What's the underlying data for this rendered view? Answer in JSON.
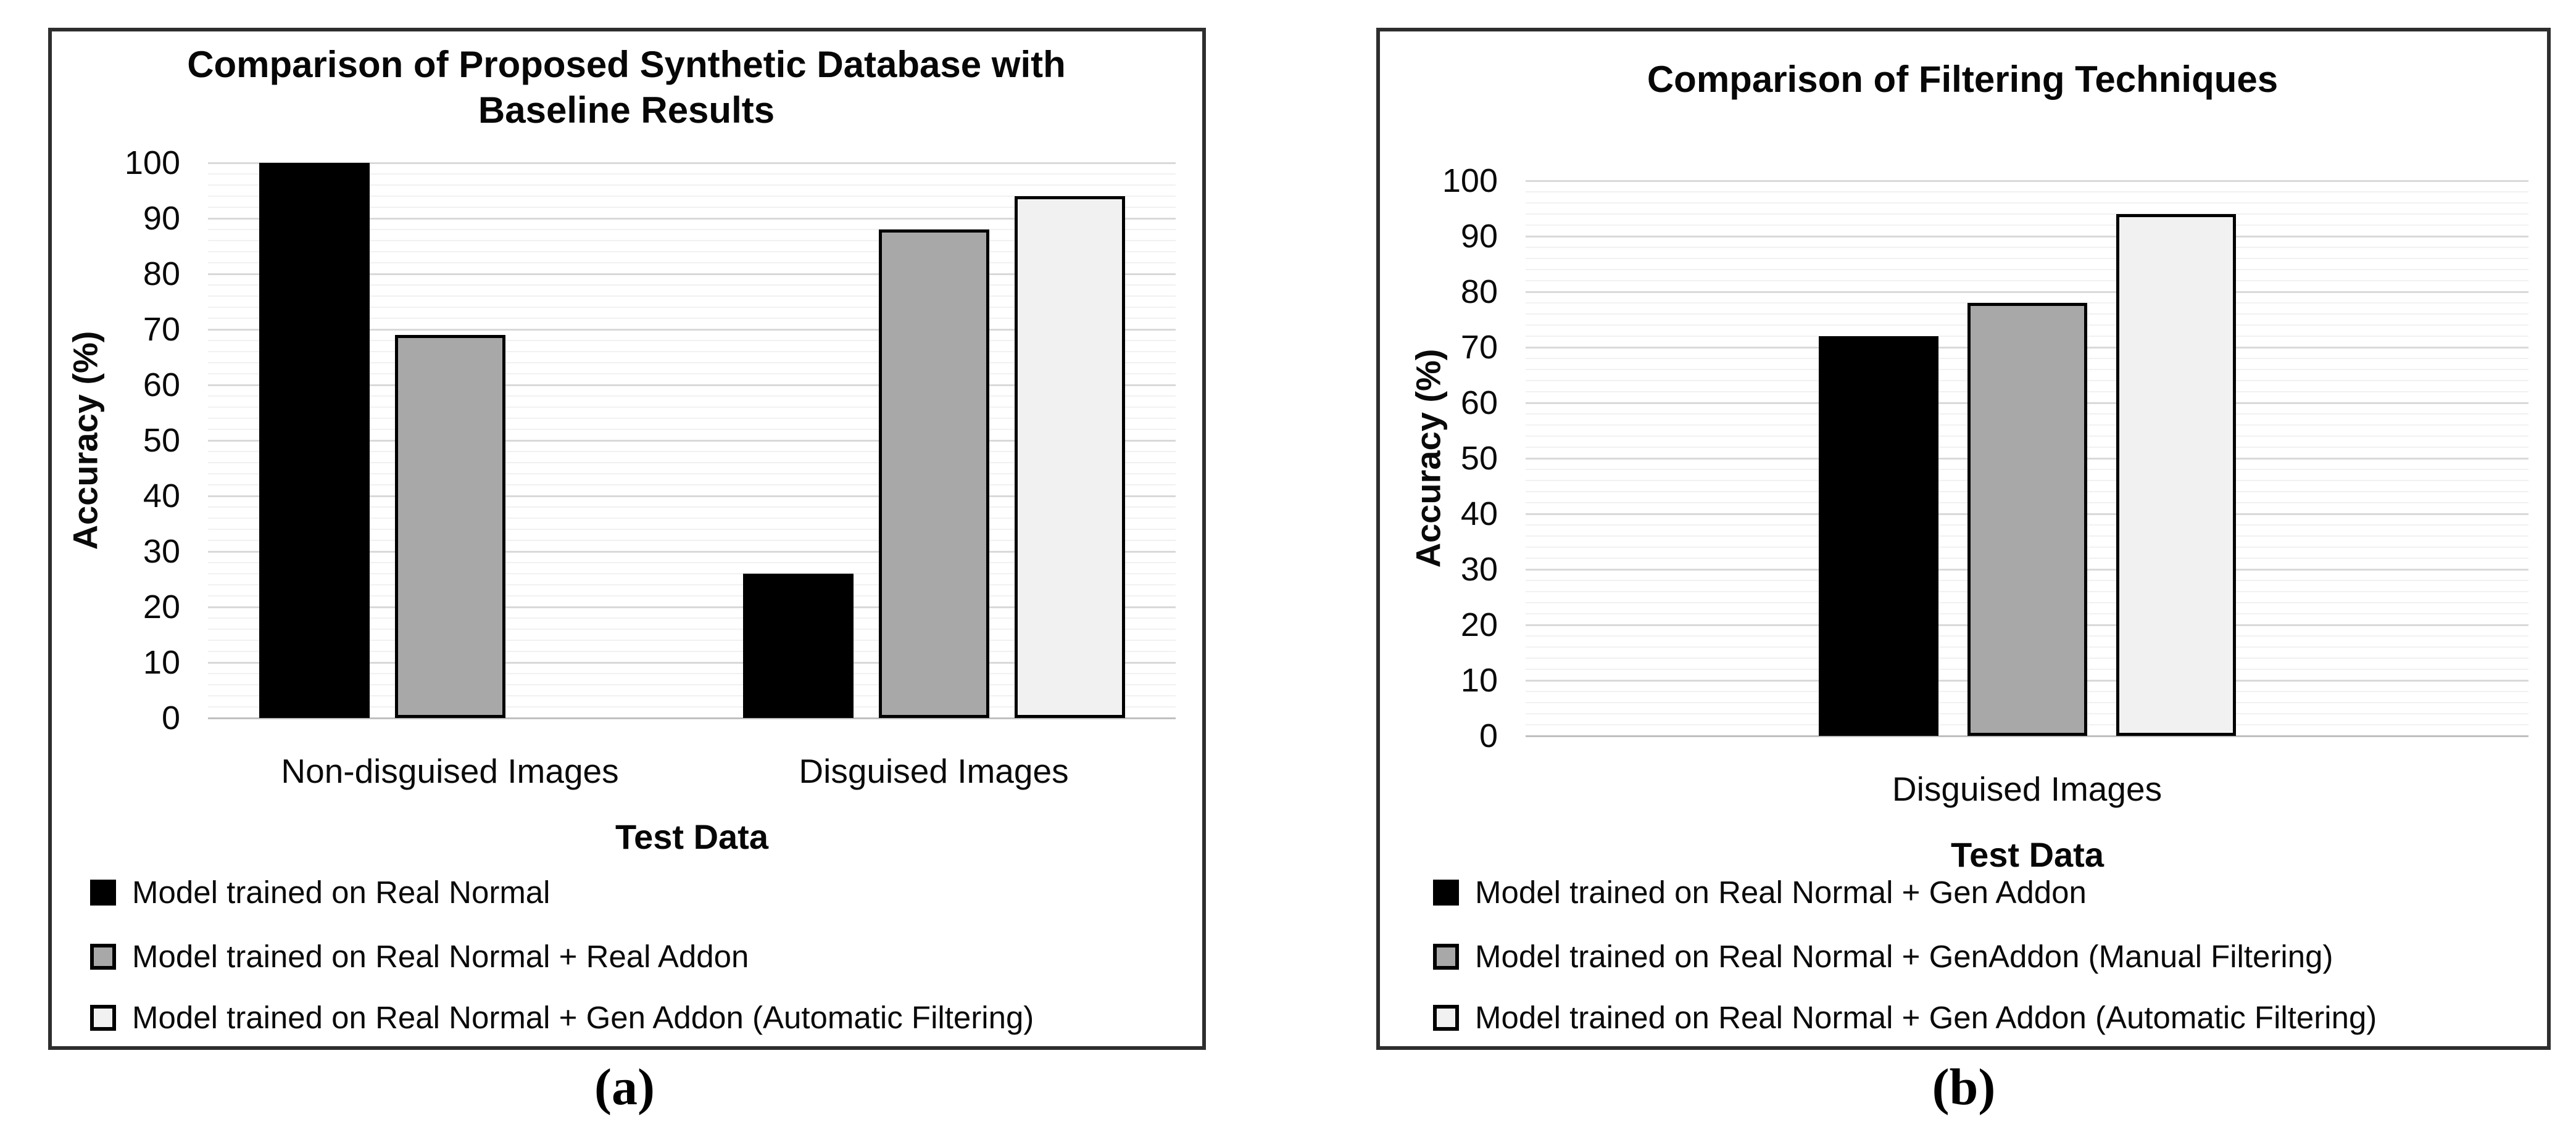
{
  "figure": {
    "background": "#ffffff",
    "panel_border_color": "#2e2e2e",
    "gridline_major_color": "#d9d9d9",
    "gridline_minor_color": "#f1f1f1",
    "baseline_color": "#bfbfbf",
    "text_color": "#0a0a0a"
  },
  "chart_data": [
    {
      "id": "a",
      "type": "bar",
      "title": "Comparison of Proposed Synthetic Database with Baseline Results",
      "title_lines": [
        "Comparison of Proposed Synthetic Database with",
        "Baseline Results"
      ],
      "xlabel": "Test Data",
      "ylabel": "Accuracy (%)",
      "ylim": [
        0,
        100
      ],
      "major_step": 10,
      "minor_step": 2,
      "grid": true,
      "legend_position": "bottom-left",
      "caption": "(a)",
      "y_ticks": [
        "0",
        "10",
        "20",
        "30",
        "40",
        "50",
        "60",
        "70",
        "80",
        "90",
        "100"
      ],
      "categories": [
        "Non-disguised Images",
        "Disguised Images"
      ],
      "series": [
        {
          "name": "Model trained on Real Normal",
          "values": [
            100,
            26
          ],
          "fill": "#000000",
          "stroke": "#000000"
        },
        {
          "name": "Model trained on Real Normal + Real Addon",
          "values": [
            69,
            88
          ],
          "fill": "#a8a8a8",
          "stroke": "#000000"
        },
        {
          "name": "Model trained on Real Normal + Gen Addon (Automatic Filtering)",
          "values": [
            null,
            94
          ],
          "fill": "#f1f1f1",
          "stroke": "#000000"
        }
      ]
    },
    {
      "id": "b",
      "type": "bar",
      "title": "Comparison of Filtering Techniques",
      "title_lines": [
        "Comparison of Filtering Techniques"
      ],
      "xlabel": "Test Data",
      "ylabel": "Accuracy (%)",
      "ylim": [
        0,
        100
      ],
      "major_step": 10,
      "minor_step": 2,
      "grid": true,
      "legend_position": "bottom-left",
      "caption": "(b)",
      "y_ticks": [
        "0",
        "10",
        "20",
        "30",
        "40",
        "50",
        "60",
        "70",
        "80",
        "90",
        "100"
      ],
      "categories": [
        "Disguised Images"
      ],
      "series": [
        {
          "name": "Model trained on Real Normal + Gen Addon",
          "values": [
            72
          ],
          "fill": "#000000",
          "stroke": "#000000"
        },
        {
          "name": "Model trained on Real Normal + GenAddon (Manual Filtering)",
          "values": [
            78
          ],
          "fill": "#a8a8a8",
          "stroke": "#000000"
        },
        {
          "name": "Model trained on Real Normal + Gen Addon (Automatic Filtering)",
          "values": [
            94
          ],
          "fill": "#f1f1f1",
          "stroke": "#000000"
        }
      ]
    }
  ]
}
